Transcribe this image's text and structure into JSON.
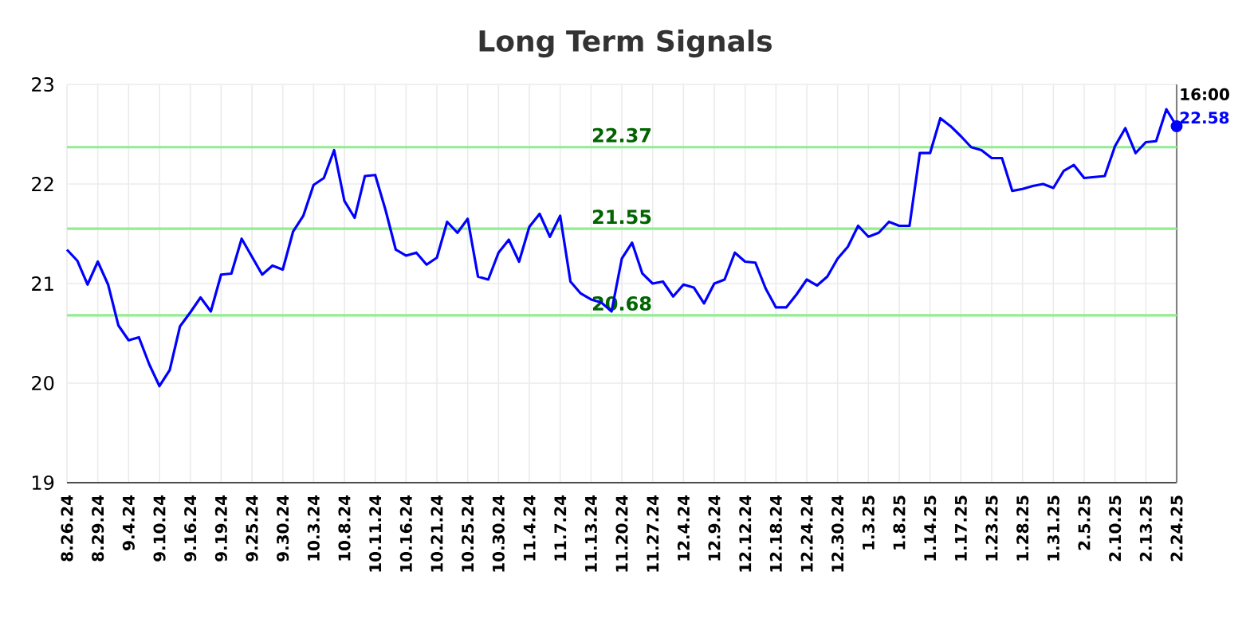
{
  "chart_data": {
    "type": "line",
    "title": "Long Term Signals",
    "categories": [
      "8.26.24",
      null,
      null,
      "8.29.24",
      null,
      null,
      "9.4.24",
      null,
      null,
      "9.10.24",
      null,
      null,
      "9.16.24",
      null,
      null,
      "9.19.24",
      null,
      null,
      "9.25.24",
      null,
      null,
      "9.30.24",
      null,
      null,
      "10.3.24",
      null,
      null,
      "10.8.24",
      null,
      null,
      "10.11.24",
      null,
      null,
      "10.16.24",
      null,
      null,
      "10.21.24",
      null,
      null,
      "10.25.24",
      null,
      null,
      "10.30.24",
      null,
      null,
      "11.4.24",
      null,
      null,
      "11.7.24",
      null,
      null,
      "11.13.24",
      null,
      null,
      "11.20.24",
      null,
      null,
      "11.27.24",
      null,
      null,
      "12.4.24",
      null,
      null,
      "12.9.24",
      null,
      null,
      "12.12.24",
      null,
      null,
      "12.18.24",
      null,
      null,
      "12.24.24",
      null,
      null,
      "12.30.24",
      null,
      null,
      "1.3.25",
      null,
      null,
      "1.8.25",
      null,
      null,
      "1.14.25",
      null,
      null,
      "1.17.25",
      null,
      null,
      "1.23.25",
      null,
      null,
      "1.28.25",
      null,
      null,
      "1.31.25",
      null,
      null,
      "2.5.25",
      null,
      null,
      "2.10.25",
      null,
      null,
      "2.13.25",
      null,
      null,
      "2.24.25"
    ],
    "series": [
      {
        "color": "#0000ff",
        "values": [
          21.34,
          21.23,
          20.99,
          21.22,
          20.99,
          20.58,
          20.43,
          20.46,
          20.19,
          19.97,
          20.13,
          20.57,
          20.71,
          20.86,
          20.72,
          21.09,
          21.1,
          21.45,
          21.27,
          21.09,
          21.18,
          21.14,
          21.52,
          21.68,
          21.99,
          22.06,
          22.34,
          21.83,
          21.66,
          22.08,
          22.09,
          21.74,
          21.34,
          21.28,
          21.31,
          21.19,
          21.26,
          21.62,
          21.51,
          21.65,
          21.07,
          21.04,
          21.31,
          21.44,
          21.22,
          21.57,
          21.7,
          21.47,
          21.68,
          21.02,
          20.9,
          20.84,
          20.81,
          20.72,
          21.25,
          21.41,
          21.1,
          21.0,
          21.02,
          20.87,
          20.99,
          20.96,
          20.8,
          21.0,
          21.04,
          21.31,
          21.22,
          21.21,
          20.95,
          20.76,
          20.76,
          20.89,
          21.04,
          20.98,
          21.07,
          21.25,
          21.37,
          21.58,
          21.47,
          21.51,
          21.62,
          21.58,
          21.58,
          22.31,
          22.31,
          22.66,
          22.58,
          22.48,
          22.37,
          22.34,
          22.26,
          22.26,
          21.93,
          21.95,
          21.98,
          22.0,
          21.96,
          22.13,
          22.19,
          22.06,
          22.07,
          22.08,
          22.38,
          22.56,
          22.31,
          22.42,
          22.43,
          22.75,
          22.58
        ]
      },
      {
        "type": "scatter",
        "color": "#0000ff",
        "x": [
          "2.24.25"
        ],
        "values": [
          22.58
        ],
        "marker": "circle",
        "value_labels": [
          "22.58"
        ]
      }
    ],
    "ylim": [
      19,
      23
    ],
    "yticks": [
      19,
      20,
      21,
      22,
      23
    ],
    "grid": true,
    "line_style": "solid",
    "ref_lines": [
      {
        "axis": "y",
        "value": 22.37,
        "label": "22.37",
        "color": "#90ee90"
      },
      {
        "axis": "y",
        "value": 21.55,
        "label": "21.55",
        "color": "#90ee90"
      },
      {
        "axis": "y",
        "value": 20.68,
        "label": "20.68",
        "color": "#90ee90"
      }
    ],
    "annotations": [
      {
        "text": "16:00",
        "x": "2.24.25",
        "y": 22.58
      }
    ]
  }
}
